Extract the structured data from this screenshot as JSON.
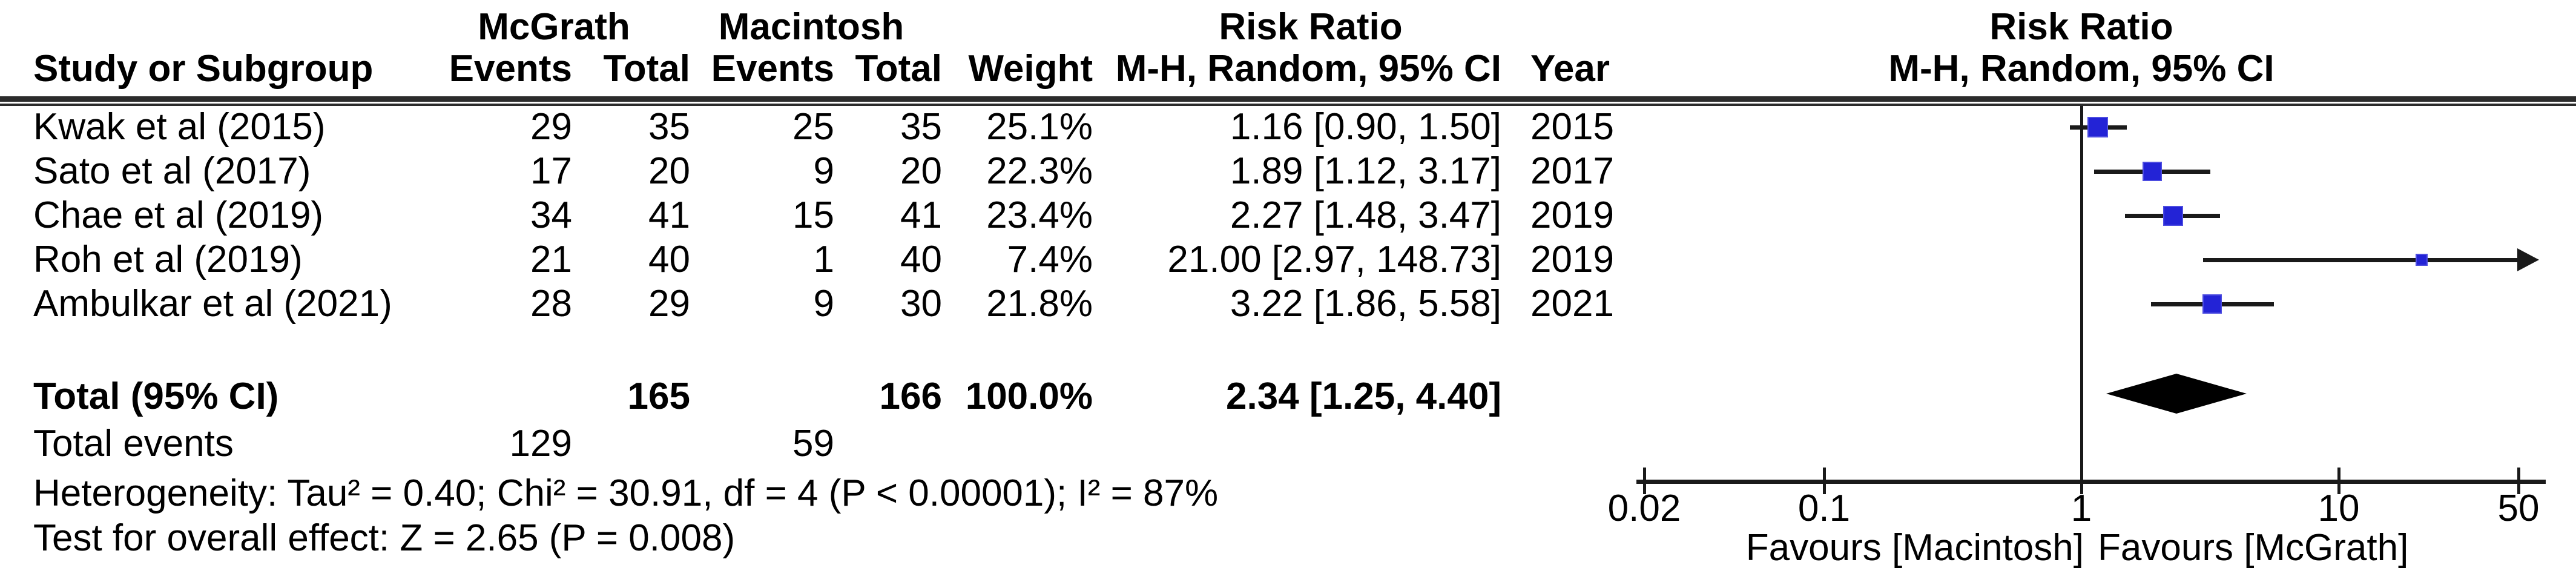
{
  "header": {
    "group1": "McGrath",
    "group2": "Macintosh",
    "effect_title": "Risk Ratio",
    "effect_subtitle": "M-H, Random, 95% CI",
    "plot_title": "Risk Ratio",
    "plot_subtitle": "M-H, Random, 95% CI",
    "col_study": "Study or Subgroup",
    "col_events_1": "Events",
    "col_total_1": "Total",
    "col_events_2": "Events",
    "col_total_2": "Total",
    "col_weight": "Weight",
    "col_estimate": "M-H, Random, 95% CI",
    "col_year": "Year"
  },
  "studies": [
    {
      "name": "Kwak et al (2015)",
      "events1": "29",
      "total1": "35",
      "events2": "25",
      "total2": "35",
      "weight": "25.1%",
      "estimate": "1.16 [0.90, 1.50]",
      "year": "2015"
    },
    {
      "name": "Sato et al (2017)",
      "events1": "17",
      "total1": "20",
      "events2": "9",
      "total2": "20",
      "weight": "22.3%",
      "estimate": "1.89 [1.12, 3.17]",
      "year": "2017"
    },
    {
      "name": "Chae et al (2019)",
      "events1": "34",
      "total1": "41",
      "events2": "15",
      "total2": "41",
      "weight": "23.4%",
      "estimate": "2.27 [1.48, 3.47]",
      "year": "2019"
    },
    {
      "name": "Roh et al (2019)",
      "events1": "21",
      "total1": "40",
      "events2": "1",
      "total2": "40",
      "weight": "7.4%",
      "estimate": "21.00 [2.97, 148.73]",
      "year": "2019"
    },
    {
      "name": "Ambulkar et al (2021)",
      "events1": "28",
      "total1": "29",
      "events2": "9",
      "total2": "30",
      "weight": "21.8%",
      "estimate": "3.22 [1.86, 5.58]",
      "year": "2021"
    }
  ],
  "totals": {
    "label": "Total (95% CI)",
    "total1": "165",
    "total2": "166",
    "weight": "100.0%",
    "estimate": "2.34 [1.25, 4.40]",
    "events_label": "Total events",
    "events1": "129",
    "events2": "59"
  },
  "footer": {
    "heterogeneity": "Heterogeneity: Tau² = 0.40; Chi² = 30.91, df = 4 (P < 0.00001); I² = 87%",
    "overall_effect": "Test for overall effect: Z = 2.65 (P = 0.008)"
  },
  "axis": {
    "ticks": [
      "0.02",
      "0.1",
      "1",
      "10",
      "50"
    ],
    "favours_left": "Favours [Macintosh]",
    "favours_right": "Favours [McGrath]"
  },
  "colors": {
    "square": "#2323d6",
    "square_edge": "#4d4de0",
    "ci_line": "#1a1a1a",
    "diamond": "#000000"
  },
  "chart_data": {
    "type": "scatter",
    "subtype": "forest_plot_meta_analysis",
    "title": "Risk Ratio",
    "effect_measure": "M-H, Random, 95% CI",
    "x_scale": "log10",
    "x_ticks": [
      0.02,
      0.1,
      1,
      10,
      50
    ],
    "xlim": [
      0.02,
      50
    ],
    "null_line": 1,
    "xlabel_left": "Favours [Macintosh]",
    "xlabel_right": "Favours [McGrath]",
    "studies": [
      {
        "name": "Kwak et al (2015)",
        "events_mcgrath": 29,
        "total_mcgrath": 35,
        "events_macintosh": 25,
        "total_macintosh": 35,
        "weight_pct": 25.1,
        "rr": 1.16,
        "ci_low": 0.9,
        "ci_high": 1.5,
        "year": 2015
      },
      {
        "name": "Sato et al (2017)",
        "events_mcgrath": 17,
        "total_mcgrath": 20,
        "events_macintosh": 9,
        "total_macintosh": 20,
        "weight_pct": 22.3,
        "rr": 1.89,
        "ci_low": 1.12,
        "ci_high": 3.17,
        "year": 2017
      },
      {
        "name": "Chae et al (2019)",
        "events_mcgrath": 34,
        "total_mcgrath": 41,
        "events_macintosh": 15,
        "total_macintosh": 41,
        "weight_pct": 23.4,
        "rr": 2.27,
        "ci_low": 1.48,
        "ci_high": 3.47,
        "year": 2019
      },
      {
        "name": "Roh et al (2019)",
        "events_mcgrath": 21,
        "total_mcgrath": 40,
        "events_macintosh": 1,
        "total_macintosh": 40,
        "weight_pct": 7.4,
        "rr": 21.0,
        "ci_low": 2.97,
        "ci_high": 148.73,
        "year": 2019
      },
      {
        "name": "Ambulkar et al (2021)",
        "events_mcgrath": 28,
        "total_mcgrath": 29,
        "events_macintosh": 9,
        "total_macintosh": 30,
        "weight_pct": 21.8,
        "rr": 3.22,
        "ci_low": 1.86,
        "ci_high": 5.58,
        "year": 2021
      }
    ],
    "pooled": {
      "label": "Total (95% CI)",
      "total_mcgrath": 165,
      "total_macintosh": 166,
      "weight_pct": 100.0,
      "rr": 2.34,
      "ci_low": 1.25,
      "ci_high": 4.4,
      "total_events_mcgrath": 129,
      "total_events_macintosh": 59
    },
    "heterogeneity": {
      "tau2": 0.4,
      "chi2": 30.91,
      "df": 4,
      "p": "< 0.00001",
      "i2_pct": 87
    },
    "overall_effect": {
      "z": 2.65,
      "p": 0.008
    }
  }
}
